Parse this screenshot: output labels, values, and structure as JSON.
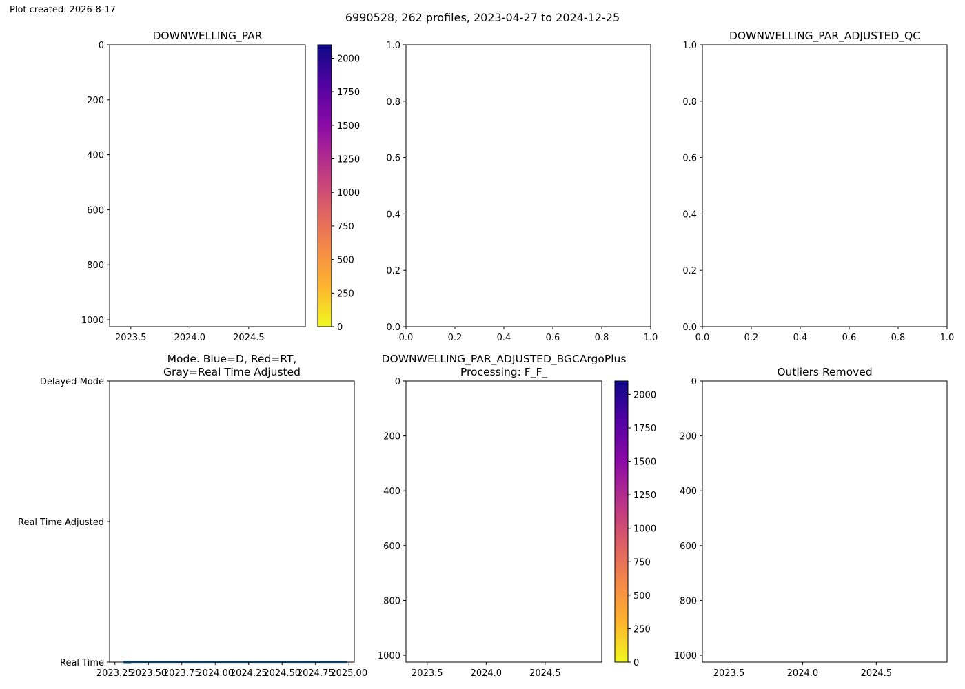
{
  "page": {
    "created": "Plot created: 2026-8-17",
    "suptitle": "6990528, 262 profiles, 2023-04-27 to 2024-12-25"
  },
  "colors": {
    "mode_series": "#1f77b4",
    "colormap": [
      "#f0f921",
      "#fdb42f",
      "#f48849",
      "#db5c68",
      "#b83289",
      "#8b0aa5",
      "#5302a3",
      "#0d0887"
    ]
  },
  "chart_data": [
    {
      "id": "downwelling-par",
      "type": "heatmap",
      "title": "DOWNWELLING_PAR",
      "xlabel": "",
      "ylabel": "",
      "xlim": [
        2023.32,
        2024.98
      ],
      "ylim": [
        1025,
        0
      ],
      "xticks": [
        {
          "v": 2023.5,
          "label": "2023.5"
        },
        {
          "v": 2024.0,
          "label": "2024.0"
        },
        {
          "v": 2024.5,
          "label": "2024.5"
        }
      ],
      "yticks": [
        {
          "v": 0,
          "label": "0"
        },
        {
          "v": 200,
          "label": "200"
        },
        {
          "v": 400,
          "label": "400"
        },
        {
          "v": 600,
          "label": "600"
        },
        {
          "v": 800,
          "label": "800"
        },
        {
          "v": 1000,
          "label": "1000"
        }
      ],
      "grid": false,
      "colorbar": {
        "range": [
          0,
          2100
        ],
        "ticks": [
          {
            "v": 0,
            "label": "0"
          },
          {
            "v": 250,
            "label": "250"
          },
          {
            "v": 500,
            "label": "500"
          },
          {
            "v": 750,
            "label": "750"
          },
          {
            "v": 1000,
            "label": "1000"
          },
          {
            "v": 1250,
            "label": "1250"
          },
          {
            "v": 1500,
            "label": "1500"
          },
          {
            "v": 1750,
            "label": "1750"
          },
          {
            "v": 2000,
            "label": "2000"
          }
        ]
      }
    },
    {
      "id": "empty-middle",
      "type": "scatter",
      "title": "",
      "xlim": [
        0,
        1
      ],
      "ylim": [
        0,
        1
      ],
      "xticks": [
        {
          "v": 0,
          "label": "0.0"
        },
        {
          "v": 0.2,
          "label": "0.2"
        },
        {
          "v": 0.4,
          "label": "0.4"
        },
        {
          "v": 0.6,
          "label": "0.6"
        },
        {
          "v": 0.8,
          "label": "0.8"
        },
        {
          "v": 1,
          "label": "1.0"
        }
      ],
      "yticks": [
        {
          "v": 0,
          "label": "0.0"
        },
        {
          "v": 0.2,
          "label": "0.2"
        },
        {
          "v": 0.4,
          "label": "0.4"
        },
        {
          "v": 0.6,
          "label": "0.6"
        },
        {
          "v": 0.8,
          "label": "0.8"
        },
        {
          "v": 1,
          "label": "1.0"
        }
      ],
      "grid": false
    },
    {
      "id": "adjusted-qc",
      "type": "scatter",
      "title": "DOWNWELLING_PAR_ADJUSTED_QC",
      "xlim": [
        0,
        1
      ],
      "ylim": [
        0,
        1
      ],
      "xticks": [
        {
          "v": 0,
          "label": "0.0"
        },
        {
          "v": 0.2,
          "label": "0.2"
        },
        {
          "v": 0.4,
          "label": "0.4"
        },
        {
          "v": 0.6,
          "label": "0.6"
        },
        {
          "v": 0.8,
          "label": "0.8"
        },
        {
          "v": 1,
          "label": "1.0"
        }
      ],
      "yticks": [
        {
          "v": 0,
          "label": "0.0"
        },
        {
          "v": 0.2,
          "label": "0.2"
        },
        {
          "v": 0.4,
          "label": "0.4"
        },
        {
          "v": 0.6,
          "label": "0.6"
        },
        {
          "v": 0.8,
          "label": "0.8"
        },
        {
          "v": 1,
          "label": "1.0"
        }
      ],
      "grid": false
    },
    {
      "id": "mode",
      "type": "line",
      "title": "Mode. Blue=D, Red=RT,\nGray=Real Time Adjusted",
      "xlim": [
        2023.21,
        2025.04
      ],
      "ylim": [
        0,
        2
      ],
      "xticks": [
        {
          "v": 2023.25,
          "label": "2023.25"
        },
        {
          "v": 2023.5,
          "label": "2023.50"
        },
        {
          "v": 2023.75,
          "label": "2023.75"
        },
        {
          "v": 2024.0,
          "label": "2024.00"
        },
        {
          "v": 2024.25,
          "label": "2024.25"
        },
        {
          "v": 2024.5,
          "label": "2024.50"
        },
        {
          "v": 2024.75,
          "label": "2024.75"
        },
        {
          "v": 2025.0,
          "label": "2025.00"
        }
      ],
      "yticks": [
        {
          "v": 0,
          "label": "Real Time"
        },
        {
          "v": 1,
          "label": "Real Time Adjusted"
        },
        {
          "v": 2,
          "label": "Delayed Mode"
        }
      ],
      "grid": false,
      "series": [
        {
          "x_start": 2023.32,
          "x_end": 2024.99,
          "y": 0,
          "dense_until": 2023.37,
          "spacing": 0.0064
        }
      ]
    },
    {
      "id": "adjusted-bgcargoplus",
      "type": "heatmap",
      "title": "DOWNWELLING_PAR_ADJUSTED_BGCArgoPlus\nProcessing: F_F_",
      "xlim": [
        2023.32,
        2024.98
      ],
      "ylim": [
        1025,
        0
      ],
      "xticks": [
        {
          "v": 2023.5,
          "label": "2023.5"
        },
        {
          "v": 2024.0,
          "label": "2024.0"
        },
        {
          "v": 2024.5,
          "label": "2024.5"
        }
      ],
      "yticks": [
        {
          "v": 0,
          "label": "0"
        },
        {
          "v": 200,
          "label": "200"
        },
        {
          "v": 400,
          "label": "400"
        },
        {
          "v": 600,
          "label": "600"
        },
        {
          "v": 800,
          "label": "800"
        },
        {
          "v": 1000,
          "label": "1000"
        }
      ],
      "grid": false,
      "colorbar": {
        "range": [
          0,
          2100
        ],
        "ticks": [
          {
            "v": 0,
            "label": "0"
          },
          {
            "v": 250,
            "label": "250"
          },
          {
            "v": 500,
            "label": "500"
          },
          {
            "v": 750,
            "label": "750"
          },
          {
            "v": 1000,
            "label": "1000"
          },
          {
            "v": 1250,
            "label": "1250"
          },
          {
            "v": 1500,
            "label": "1500"
          },
          {
            "v": 1750,
            "label": "1750"
          },
          {
            "v": 2000,
            "label": "2000"
          }
        ]
      }
    },
    {
      "id": "outliers-removed",
      "type": "scatter",
      "title": "Outliers Removed",
      "xlim": [
        2023.32,
        2024.98
      ],
      "ylim": [
        1025,
        0
      ],
      "xticks": [
        {
          "v": 2023.5,
          "label": "2023.5"
        },
        {
          "v": 2024.0,
          "label": "2024.0"
        },
        {
          "v": 2024.5,
          "label": "2024.5"
        }
      ],
      "yticks": [
        {
          "v": 0,
          "label": "0"
        },
        {
          "v": 200,
          "label": "200"
        },
        {
          "v": 400,
          "label": "400"
        },
        {
          "v": 600,
          "label": "600"
        },
        {
          "v": 800,
          "label": "800"
        },
        {
          "v": 1000,
          "label": "1000"
        }
      ],
      "grid": false
    }
  ]
}
